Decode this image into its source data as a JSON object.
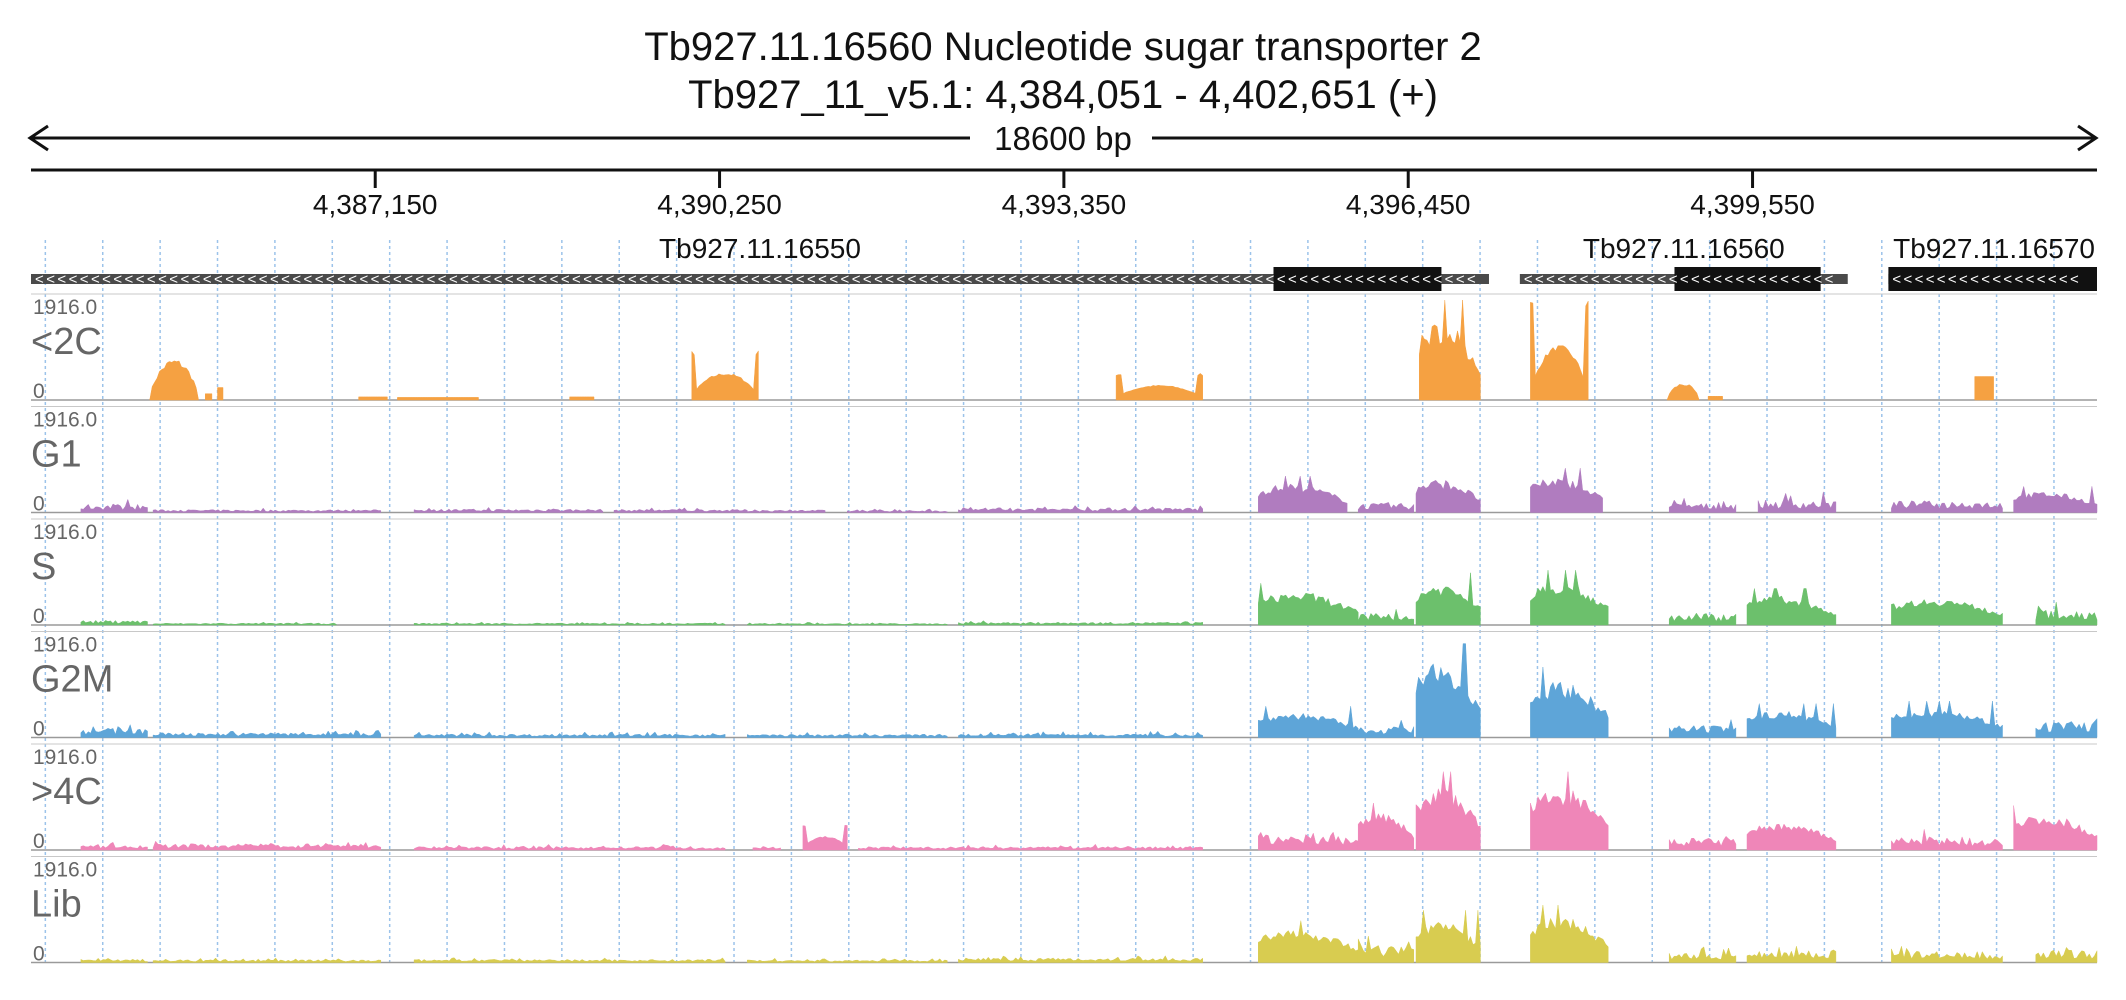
{
  "chart_data": {
    "type": "area",
    "title": "Tb927.11.16560  Nucleotide sugar transporter 2",
    "subtitle": "Tb927_11_v5.1: 4,384,051 - 4,402,651 (+)",
    "span_label": "18600 bp",
    "xlim": [
      4384051,
      4402651
    ],
    "x_ticks": [
      {
        "value": 4387150,
        "label": "4,387,150"
      },
      {
        "value": 4390250,
        "label": "4,390,250"
      },
      {
        "value": 4393350,
        "label": "4,393,350"
      },
      {
        "value": 4396450,
        "label": "4,396,450"
      },
      {
        "value": 4399550,
        "label": "4,399,550"
      }
    ],
    "genes": [
      {
        "name": "Tb927.11.16550",
        "start": 4384051,
        "end": 4397177,
        "cds_start": 4395237,
        "cds_end": 4396749,
        "strand": "-"
      },
      {
        "name": "Tb927.11.16560",
        "start": 4397455,
        "end": 4400407,
        "cds_start": 4398847,
        "cds_end": 4400163,
        "strand": "-"
      },
      {
        "name": "Tb927.11.16570",
        "start": 4400773,
        "end": 4402651,
        "cds_start": 4400773,
        "cds_end": 4402651,
        "strand": "-"
      }
    ],
    "ylim": [
      0,
      1916.0
    ],
    "y_max_label": "1916.0",
    "y_min_label": "0",
    "series": [
      {
        "name": "<2C",
        "color": "#f5a142",
        "peaks": [
          {
            "start": 4385120,
            "end": 4385560,
            "level": 800,
            "shape": "dome"
          },
          {
            "start": 4385620,
            "end": 4385680,
            "level": 120,
            "shape": "flat"
          },
          {
            "start": 4385730,
            "end": 4385780,
            "level": 240,
            "shape": "flat"
          },
          {
            "start": 4387000,
            "end": 4387260,
            "level": 60,
            "shape": "flat"
          },
          {
            "start": 4387350,
            "end": 4388080,
            "level": 50,
            "shape": "flat"
          },
          {
            "start": 4388900,
            "end": 4389120,
            "level": 60,
            "shape": "flat"
          },
          {
            "start": 4390000,
            "end": 4390600,
            "level": 950,
            "shape": "cup"
          },
          {
            "start": 4393820,
            "end": 4394600,
            "level": 520,
            "shape": "cup"
          },
          {
            "start": 4396550,
            "end": 4397100,
            "level": 1916,
            "shape": "spiky"
          },
          {
            "start": 4397550,
            "end": 4398070,
            "level": 1916,
            "shape": "cup"
          },
          {
            "start": 4398780,
            "end": 4399070,
            "level": 330,
            "shape": "dome"
          },
          {
            "start": 4399150,
            "end": 4399280,
            "level": 70,
            "shape": "flat"
          },
          {
            "start": 4401550,
            "end": 4401720,
            "level": 450,
            "shape": "flat"
          }
        ]
      },
      {
        "name": "G1",
        "color": "#b07cbf",
        "peaks": [
          {
            "start": 4384500,
            "end": 4385100,
            "level": 270,
            "shape": "jagged"
          },
          {
            "start": 4385150,
            "end": 4387200,
            "level": 90,
            "shape": "jagged"
          },
          {
            "start": 4387500,
            "end": 4389200,
            "level": 110,
            "shape": "jagged"
          },
          {
            "start": 4389300,
            "end": 4390500,
            "level": 100,
            "shape": "jagged"
          },
          {
            "start": 4390500,
            "end": 4391200,
            "level": 80,
            "shape": "jagged"
          },
          {
            "start": 4391400,
            "end": 4392300,
            "level": 70,
            "shape": "jagged"
          },
          {
            "start": 4392400,
            "end": 4393000,
            "level": 130,
            "shape": "jagged"
          },
          {
            "start": 4393000,
            "end": 4394600,
            "level": 150,
            "shape": "jagged"
          },
          {
            "start": 4395100,
            "end": 4395900,
            "level": 700,
            "shape": "spiky"
          },
          {
            "start": 4396000,
            "end": 4396500,
            "level": 300,
            "shape": "jagged"
          },
          {
            "start": 4396520,
            "end": 4397100,
            "level": 800,
            "shape": "spiky"
          },
          {
            "start": 4397550,
            "end": 4398200,
            "level": 850,
            "shape": "spiky"
          },
          {
            "start": 4398800,
            "end": 4399400,
            "level": 300,
            "shape": "jagged"
          },
          {
            "start": 4399600,
            "end": 4400300,
            "level": 400,
            "shape": "jagged"
          },
          {
            "start": 4400800,
            "end": 4401800,
            "level": 380,
            "shape": "jagged"
          },
          {
            "start": 4401900,
            "end": 4402651,
            "level": 500,
            "shape": "spiky"
          }
        ]
      },
      {
        "name": "S",
        "color": "#6cc06c",
        "peaks": [
          {
            "start": 4384500,
            "end": 4385100,
            "level": 150,
            "shape": "jagged"
          },
          {
            "start": 4385150,
            "end": 4386800,
            "level": 60,
            "shape": "jagged"
          },
          {
            "start": 4387500,
            "end": 4390300,
            "level": 60,
            "shape": "jagged"
          },
          {
            "start": 4390500,
            "end": 4392300,
            "level": 50,
            "shape": "jagged"
          },
          {
            "start": 4392400,
            "end": 4394600,
            "level": 90,
            "shape": "jagged"
          },
          {
            "start": 4395100,
            "end": 4396000,
            "level": 800,
            "shape": "spiky"
          },
          {
            "start": 4396000,
            "end": 4396500,
            "level": 400,
            "shape": "jagged"
          },
          {
            "start": 4396520,
            "end": 4397100,
            "level": 1000,
            "shape": "spiky"
          },
          {
            "start": 4397550,
            "end": 4398250,
            "level": 1050,
            "shape": "spiky"
          },
          {
            "start": 4398800,
            "end": 4399400,
            "level": 380,
            "shape": "jagged"
          },
          {
            "start": 4399500,
            "end": 4400300,
            "level": 700,
            "shape": "spiky"
          },
          {
            "start": 4400800,
            "end": 4401800,
            "level": 650,
            "shape": "spiky"
          },
          {
            "start": 4402100,
            "end": 4402651,
            "level": 500,
            "shape": "jagged"
          }
        ]
      },
      {
        "name": "G2M",
        "color": "#5ea5d8",
        "peaks": [
          {
            "start": 4384500,
            "end": 4385100,
            "level": 300,
            "shape": "jagged"
          },
          {
            "start": 4385150,
            "end": 4387200,
            "level": 150,
            "shape": "jagged"
          },
          {
            "start": 4387500,
            "end": 4390300,
            "level": 110,
            "shape": "jagged"
          },
          {
            "start": 4390500,
            "end": 4392300,
            "level": 100,
            "shape": "jagged"
          },
          {
            "start": 4392400,
            "end": 4394600,
            "level": 120,
            "shape": "jagged"
          },
          {
            "start": 4395100,
            "end": 4396000,
            "level": 600,
            "shape": "spiky"
          },
          {
            "start": 4396000,
            "end": 4396500,
            "level": 350,
            "shape": "jagged"
          },
          {
            "start": 4396520,
            "end": 4397100,
            "level": 1800,
            "shape": "spiky"
          },
          {
            "start": 4397550,
            "end": 4398250,
            "level": 1350,
            "shape": "spiky"
          },
          {
            "start": 4398800,
            "end": 4399400,
            "level": 380,
            "shape": "jagged"
          },
          {
            "start": 4399500,
            "end": 4400300,
            "level": 650,
            "shape": "spiky"
          },
          {
            "start": 4400800,
            "end": 4401800,
            "level": 700,
            "shape": "spiky"
          },
          {
            "start": 4402100,
            "end": 4402651,
            "level": 550,
            "shape": "jagged"
          }
        ]
      },
      {
        "name": ">4C",
        "color": "#ef86b8",
        "peaks": [
          {
            "start": 4384500,
            "end": 4385100,
            "level": 150,
            "shape": "jagged"
          },
          {
            "start": 4385150,
            "end": 4387200,
            "level": 200,
            "shape": "jagged"
          },
          {
            "start": 4387500,
            "end": 4389900,
            "level": 110,
            "shape": "jagged"
          },
          {
            "start": 4389900,
            "end": 4390300,
            "level": 80,
            "shape": "jagged"
          },
          {
            "start": 4390550,
            "end": 4390800,
            "level": 100,
            "shape": "jagged"
          },
          {
            "start": 4391000,
            "end": 4391400,
            "level": 480,
            "shape": "cup"
          },
          {
            "start": 4391500,
            "end": 4394600,
            "level": 110,
            "shape": "jagged"
          },
          {
            "start": 4395100,
            "end": 4396000,
            "level": 500,
            "shape": "jagged"
          },
          {
            "start": 4396000,
            "end": 4396500,
            "level": 900,
            "shape": "spiky"
          },
          {
            "start": 4396520,
            "end": 4397100,
            "level": 1500,
            "shape": "spiky"
          },
          {
            "start": 4397550,
            "end": 4398250,
            "level": 1500,
            "shape": "spiky"
          },
          {
            "start": 4398800,
            "end": 4399400,
            "level": 380,
            "shape": "jagged"
          },
          {
            "start": 4399500,
            "end": 4400300,
            "level": 650,
            "shape": "spiky"
          },
          {
            "start": 4400800,
            "end": 4401800,
            "level": 400,
            "shape": "jagged"
          },
          {
            "start": 4401900,
            "end": 4402651,
            "level": 850,
            "shape": "spiky"
          }
        ]
      },
      {
        "name": "Lib",
        "color": "#d8cc50",
        "peaks": [
          {
            "start": 4384500,
            "end": 4385100,
            "level": 100,
            "shape": "jagged"
          },
          {
            "start": 4385150,
            "end": 4387200,
            "level": 90,
            "shape": "jagged"
          },
          {
            "start": 4387500,
            "end": 4390300,
            "level": 100,
            "shape": "jagged"
          },
          {
            "start": 4390500,
            "end": 4392300,
            "level": 80,
            "shape": "jagged"
          },
          {
            "start": 4392400,
            "end": 4394600,
            "level": 150,
            "shape": "jagged"
          },
          {
            "start": 4395100,
            "end": 4396000,
            "level": 800,
            "shape": "spiky"
          },
          {
            "start": 4396000,
            "end": 4396500,
            "level": 600,
            "shape": "jagged"
          },
          {
            "start": 4396520,
            "end": 4397100,
            "level": 1000,
            "shape": "spiky"
          },
          {
            "start": 4397550,
            "end": 4398250,
            "level": 1100,
            "shape": "spiky"
          },
          {
            "start": 4398800,
            "end": 4399400,
            "level": 300,
            "shape": "jagged"
          },
          {
            "start": 4399500,
            "end": 4400300,
            "level": 400,
            "shape": "jagged"
          },
          {
            "start": 4400800,
            "end": 4401800,
            "level": 350,
            "shape": "jagged"
          },
          {
            "start": 4402100,
            "end": 4402651,
            "level": 400,
            "shape": "jagged"
          }
        ]
      }
    ]
  }
}
